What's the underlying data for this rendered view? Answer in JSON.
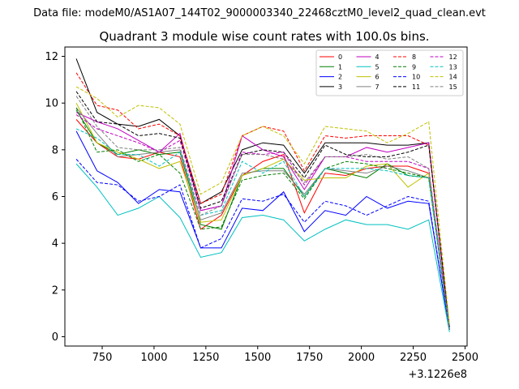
{
  "chart_data": {
    "type": "line",
    "suptitle": "Data file: modeM0/AS1A07_144T02_9000003340_22468cztM0_level2_quad_clean.evt",
    "title": "Quadrant 3 module wise count rates with 100.0s bins.",
    "xlabel": "",
    "ylabel": "",
    "x_offset_label": "+3.1226e8",
    "xlim": [
      570,
      2510
    ],
    "ylim": [
      -0.4,
      12.4
    ],
    "x_ticks": [
      750,
      1000,
      1250,
      1500,
      1750,
      2000,
      2250,
      2500
    ],
    "y_ticks": [
      0,
      2,
      4,
      6,
      8,
      10,
      12
    ],
    "legend_position": "top-right",
    "x": [
      625,
      725,
      825,
      925,
      1025,
      1125,
      1225,
      1325,
      1425,
      1525,
      1625,
      1725,
      1825,
      1925,
      2025,
      2125,
      2225,
      2325,
      2425
    ],
    "series": [
      {
        "name": "0",
        "color": "#ff0000",
        "dash": "solid",
        "values": [
          9.3,
          8.3,
          7.7,
          7.6,
          7.9,
          7.7,
          4.6,
          5.2,
          6.9,
          7.5,
          7.8,
          5.3,
          7.0,
          6.9,
          7.2,
          7.3,
          7.3,
          7.0,
          0.3
        ]
      },
      {
        "name": "1",
        "color": "#008000",
        "dash": "solid",
        "values": [
          9.7,
          8.3,
          7.8,
          8.0,
          7.8,
          7.9,
          4.8,
          4.6,
          6.9,
          7.2,
          7.2,
          6.0,
          7.2,
          7.0,
          6.8,
          7.4,
          6.9,
          6.8,
          0.3
        ]
      },
      {
        "name": "2",
        "color": "#0000ff",
        "dash": "solid",
        "values": [
          8.8,
          7.1,
          6.6,
          5.7,
          6.3,
          6.2,
          3.8,
          3.8,
          5.5,
          5.4,
          6.2,
          4.5,
          5.4,
          5.2,
          6.0,
          5.5,
          5.8,
          5.7,
          0.3
        ]
      },
      {
        "name": "3",
        "color": "#000000",
        "dash": "solid",
        "values": [
          11.9,
          9.6,
          9.1,
          9.0,
          9.3,
          8.6,
          5.7,
          6.2,
          8.0,
          8.3,
          8.2,
          7.0,
          8.3,
          8.3,
          8.3,
          8.2,
          8.2,
          8.3,
          0.4
        ]
      },
      {
        "name": "4",
        "color": "#c000c0",
        "dash": "solid",
        "values": [
          9.6,
          9.2,
          8.9,
          8.4,
          7.9,
          8.7,
          5.4,
          5.6,
          8.6,
          8.0,
          7.7,
          6.3,
          7.7,
          7.7,
          8.1,
          7.9,
          8.1,
          8.3,
          0.3
        ]
      },
      {
        "name": "5",
        "color": "#00c0c0",
        "dash": "solid",
        "values": [
          7.4,
          6.4,
          5.2,
          5.5,
          6.0,
          5.1,
          3.4,
          3.6,
          5.1,
          5.2,
          5.0,
          4.1,
          4.6,
          5.0,
          4.8,
          4.8,
          4.6,
          5.0,
          0.2
        ]
      },
      {
        "name": "6",
        "color": "#c0c000",
        "dash": "solid",
        "values": [
          10.0,
          8.3,
          7.9,
          7.6,
          7.2,
          7.5,
          4.9,
          5.0,
          6.9,
          7.2,
          7.6,
          6.7,
          6.8,
          6.8,
          7.3,
          7.4,
          6.4,
          7.0,
          0.3
        ]
      },
      {
        "name": "7",
        "color": "#808080",
        "dash": "solid",
        "values": [
          9.8,
          8.7,
          7.7,
          7.8,
          7.9,
          8.0,
          5.0,
          5.3,
          7.0,
          7.1,
          7.1,
          6.1,
          7.2,
          7.1,
          7.0,
          7.3,
          7.1,
          6.8,
          0.3
        ]
      },
      {
        "name": "8",
        "color": "#ff0000",
        "dash": "dashed",
        "values": [
          11.3,
          9.9,
          9.7,
          8.9,
          9.1,
          8.6,
          5.7,
          6.1,
          8.6,
          9.0,
          8.8,
          7.1,
          8.6,
          8.5,
          8.6,
          8.6,
          8.6,
          8.2,
          0.4
        ]
      },
      {
        "name": "9",
        "color": "#008000",
        "dash": "dashed",
        "values": [
          9.8,
          7.9,
          8.0,
          7.5,
          7.8,
          7.0,
          4.6,
          4.7,
          6.7,
          6.9,
          7.0,
          5.9,
          7.2,
          7.5,
          7.4,
          7.2,
          7.0,
          6.8,
          0.3
        ]
      },
      {
        "name": "10",
        "color": "#0000ff",
        "dash": "dashed",
        "values": [
          7.6,
          6.6,
          6.5,
          5.8,
          6.0,
          6.5,
          3.8,
          4.2,
          5.9,
          5.8,
          6.1,
          4.9,
          5.8,
          5.6,
          5.2,
          5.6,
          6.0,
          5.8,
          0.3
        ]
      },
      {
        "name": "11",
        "color": "#000000",
        "dash": "dashed",
        "values": [
          10.5,
          9.2,
          9.1,
          8.6,
          8.7,
          8.5,
          5.5,
          5.8,
          7.8,
          8.0,
          7.9,
          6.8,
          8.2,
          7.8,
          7.7,
          7.7,
          7.9,
          8.2,
          0.4
        ]
      },
      {
        "name": "12",
        "color": "#c000c0",
        "dash": "dashed",
        "values": [
          9.5,
          8.9,
          8.6,
          8.3,
          7.9,
          8.4,
          5.4,
          5.6,
          7.9,
          7.8,
          7.9,
          6.5,
          7.7,
          7.7,
          7.5,
          7.5,
          7.5,
          7.2,
          0.3
        ]
      },
      {
        "name": "13",
        "color": "#00c0c0",
        "dash": "dashed",
        "values": [
          8.9,
          8.5,
          7.8,
          7.8,
          7.3,
          7.9,
          5.2,
          5.4,
          7.5,
          7.0,
          7.5,
          6.0,
          7.2,
          7.2,
          7.2,
          7.1,
          6.9,
          6.8,
          0.3
        ]
      },
      {
        "name": "14",
        "color": "#c0c000",
        "dash": "dashed",
        "values": [
          10.7,
          10.2,
          9.4,
          9.9,
          9.8,
          9.1,
          6.1,
          6.6,
          8.6,
          9.0,
          8.6,
          7.4,
          9.0,
          8.9,
          8.8,
          8.3,
          8.7,
          9.2,
          0.5
        ]
      },
      {
        "name": "15",
        "color": "#808080",
        "dash": "dashed",
        "values": [
          10.3,
          9.0,
          8.1,
          8.0,
          8.0,
          8.1,
          5.2,
          5.6,
          7.8,
          7.8,
          7.6,
          6.6,
          7.7,
          7.7,
          7.8,
          7.6,
          7.7,
          7.2,
          0.3
        ]
      }
    ]
  }
}
